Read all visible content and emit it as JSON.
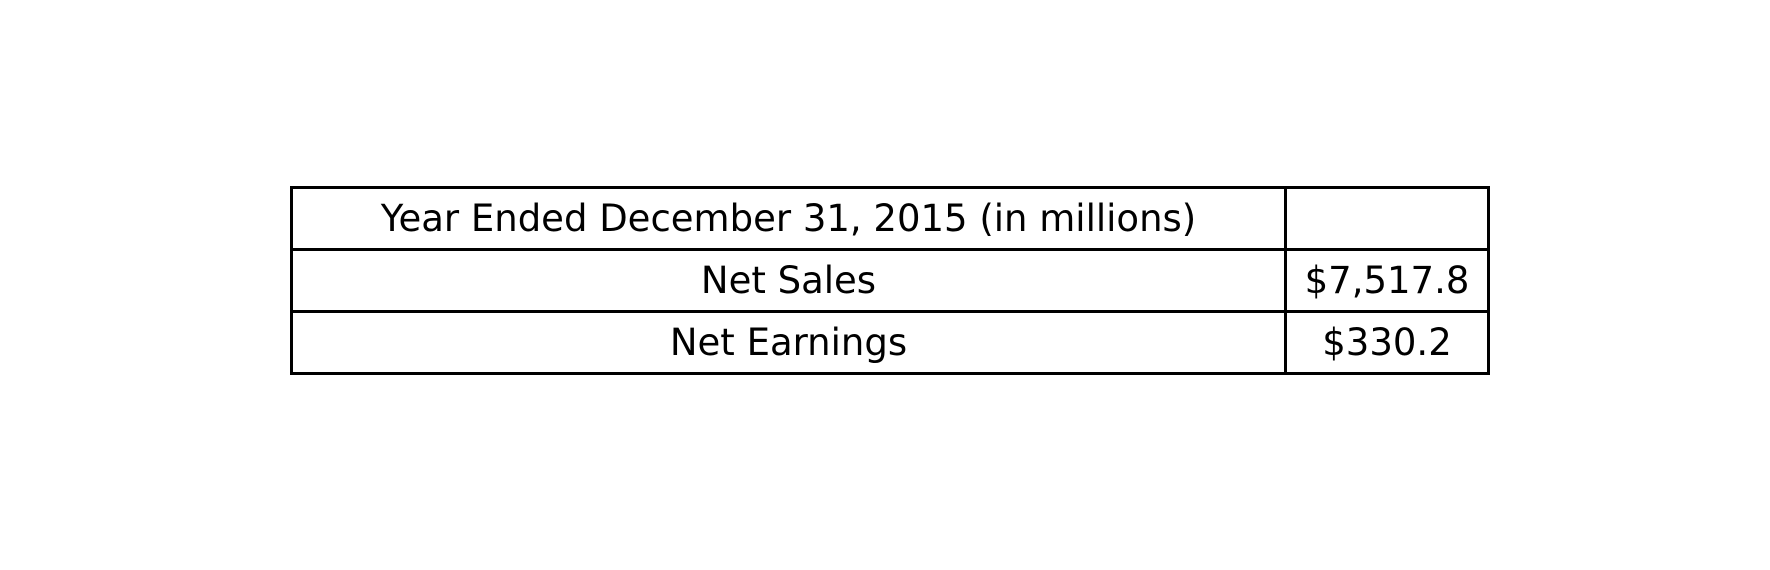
{
  "table": {
    "rows": [
      {
        "label": "Year Ended December 31, 2015 (in millions)",
        "value": ""
      },
      {
        "label": "Net Sales",
        "value": "$7,517.8"
      },
      {
        "label": "Net Earnings",
        "value": "$330.2"
      }
    ]
  }
}
